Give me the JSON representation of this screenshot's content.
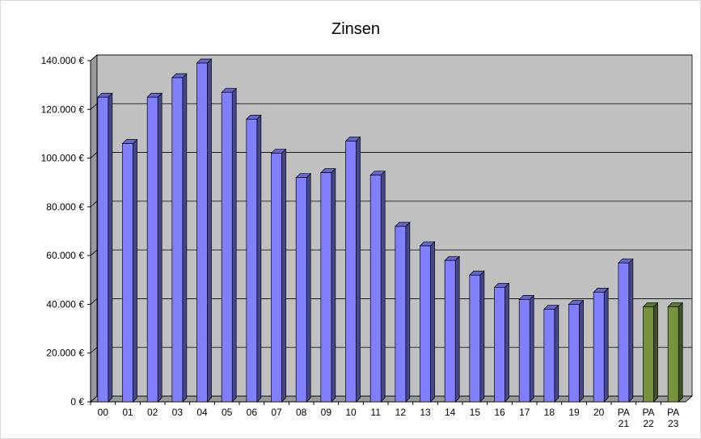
{
  "chart_data": {
    "type": "bar3d",
    "title": "Zinsen",
    "categories": [
      "00",
      "01",
      "02",
      "03",
      "04",
      "05",
      "06",
      "07",
      "08",
      "09",
      "10",
      "11",
      "12",
      "13",
      "14",
      "15",
      "16",
      "17",
      "18",
      "19",
      "20",
      "PA 21",
      "PA 22",
      "PA 23"
    ],
    "values": [
      125000,
      106000,
      125000,
      133000,
      139000,
      127000,
      116000,
      102000,
      92000,
      94000,
      107000,
      93000,
      72000,
      64000,
      58000,
      52000,
      47000,
      42000,
      38000,
      40000,
      45000,
      57000,
      39000,
      39000
    ],
    "colors": [
      "#8080ff",
      "#8080ff",
      "#8080ff",
      "#8080ff",
      "#8080ff",
      "#8080ff",
      "#8080ff",
      "#8080ff",
      "#8080ff",
      "#8080ff",
      "#8080ff",
      "#8080ff",
      "#8080ff",
      "#8080ff",
      "#8080ff",
      "#8080ff",
      "#8080ff",
      "#8080ff",
      "#8080ff",
      "#8080ff",
      "#8080ff",
      "#8080ff",
      "#77933c",
      "#77933c"
    ],
    "ylim": [
      0,
      140000
    ],
    "yticks": [
      {
        "value": 0,
        "label": "0 €"
      },
      {
        "value": 20000,
        "label": "20.000 €"
      },
      {
        "value": 40000,
        "label": "40.000 €"
      },
      {
        "value": 60000,
        "label": "60.000 €"
      },
      {
        "value": 80000,
        "label": "80.000 €"
      },
      {
        "value": 100000,
        "label": "100.000 €"
      },
      {
        "value": 120000,
        "label": "120.000 €"
      },
      {
        "value": 140000,
        "label": "140.000 €"
      }
    ],
    "grid": true
  }
}
